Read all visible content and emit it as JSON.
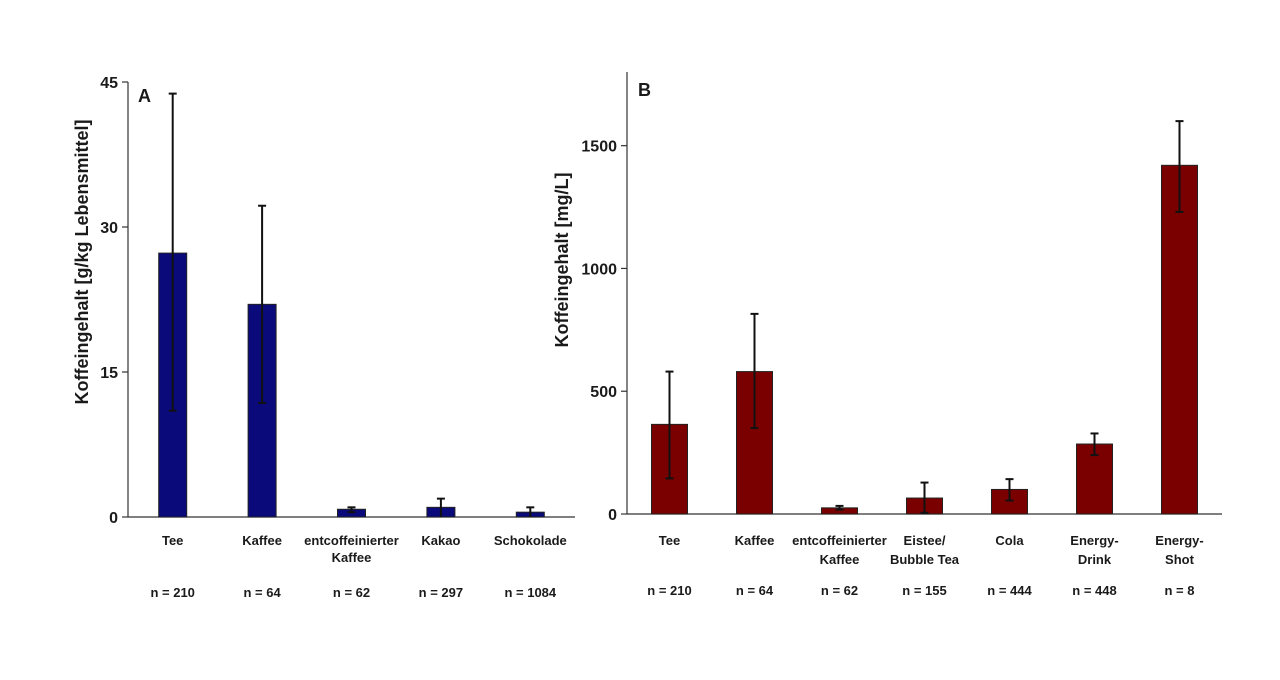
{
  "chart_data": [
    {
      "type": "bar",
      "panel": "A",
      "ylabel": "Koffeingehalt [g/kg Lebensmittel]",
      "ylim": [
        0,
        45
      ],
      "yticks": [
        "0",
        "15",
        "30",
        "45"
      ],
      "bar_color": "#0a0a7a",
      "categories": [
        {
          "label": [
            "Tee"
          ],
          "n": "n = 210"
        },
        {
          "label": [
            "Kaffee"
          ],
          "n": "n = 64"
        },
        {
          "label": [
            "entcoffeinierter",
            "Kaffee"
          ],
          "n": "n = 62"
        },
        {
          "label": [
            "Kakao"
          ],
          "n": "n = 297"
        },
        {
          "label": [
            "Schokolade"
          ],
          "n": "n = 1084"
        }
      ],
      "values": [
        27.3,
        22.0,
        0.8,
        1.0,
        0.5
      ],
      "error_low": [
        11.0,
        11.8,
        0.5,
        0.0,
        0.0
      ],
      "error_high": [
        43.8,
        32.2,
        1.0,
        1.9,
        1.0
      ]
    },
    {
      "type": "bar",
      "panel": "B",
      "ylabel": "Koffeingehalt [mg/L]",
      "ylim": [
        0,
        1800
      ],
      "yticks": [
        "0",
        "500",
        "1000",
        "1500"
      ],
      "bar_color": "#7a0000",
      "categories": [
        {
          "label": [
            "Tee"
          ],
          "n": "n = 210"
        },
        {
          "label": [
            "Kaffee"
          ],
          "n": "n = 64"
        },
        {
          "label": [
            "entcoffeinierter",
            "Kaffee"
          ],
          "n": "n = 62"
        },
        {
          "label": [
            "Eistee/",
            "Bubble Tea"
          ],
          "n": "n = 155"
        },
        {
          "label": [
            "Cola"
          ],
          "n": "n = 444"
        },
        {
          "label": [
            "Energy-",
            "Drink"
          ],
          "n": "n = 448"
        },
        {
          "label": [
            "Energy-",
            "Shot"
          ],
          "n": "n = 8"
        }
      ],
      "values": [
        365,
        580,
        25,
        65,
        100,
        285,
        1420
      ],
      "error_low": [
        145,
        350,
        18,
        5,
        55,
        240,
        1230
      ],
      "error_high": [
        580,
        815,
        33,
        128,
        142,
        328,
        1600
      ]
    }
  ]
}
